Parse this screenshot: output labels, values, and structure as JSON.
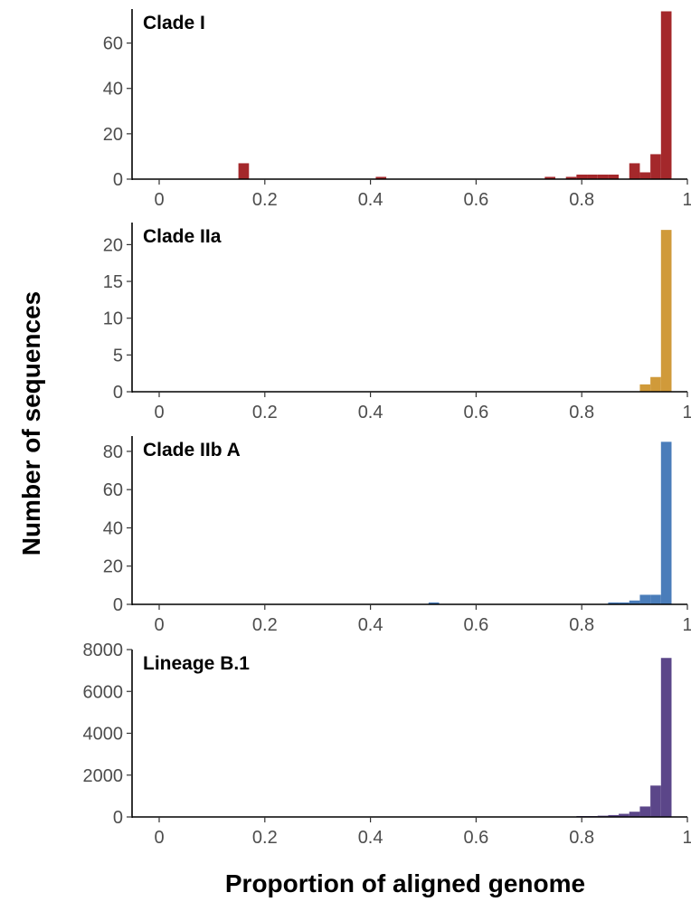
{
  "figure": {
    "xlabel": "Proportion of aligned genome",
    "ylabel": "Number of sequences"
  },
  "chart_data": [
    {
      "type": "bar",
      "title": "Clade I",
      "color": "#A4282B",
      "xlim": [
        0,
        1
      ],
      "ylim": [
        0,
        75
      ],
      "x_ticks": [
        "0",
        "0.2",
        "0.4",
        "0.6",
        "0.8",
        "1"
      ],
      "y_ticks": [
        "0",
        "20",
        "40",
        "60"
      ],
      "bins": [
        {
          "x0": 0.15,
          "x1": 0.17,
          "count": 7
        },
        {
          "x0": 0.41,
          "x1": 0.43,
          "count": 1
        },
        {
          "x0": 0.73,
          "x1": 0.75,
          "count": 1
        },
        {
          "x0": 0.77,
          "x1": 0.79,
          "count": 1
        },
        {
          "x0": 0.79,
          "x1": 0.81,
          "count": 2
        },
        {
          "x0": 0.81,
          "x1": 0.83,
          "count": 2
        },
        {
          "x0": 0.83,
          "x1": 0.85,
          "count": 2
        },
        {
          "x0": 0.85,
          "x1": 0.87,
          "count": 2
        },
        {
          "x0": 0.89,
          "x1": 0.91,
          "count": 7
        },
        {
          "x0": 0.91,
          "x1": 0.93,
          "count": 3
        },
        {
          "x0": 0.93,
          "x1": 0.95,
          "count": 11
        },
        {
          "x0": 0.95,
          "x1": 0.97,
          "count": 74
        }
      ]
    },
    {
      "type": "bar",
      "title": "Clade IIa",
      "color": "#D09A3A",
      "xlim": [
        0,
        1
      ],
      "ylim": [
        0,
        23
      ],
      "x_ticks": [
        "0",
        "0.2",
        "0.4",
        "0.6",
        "0.8",
        "1"
      ],
      "y_ticks": [
        "0",
        "5",
        "10",
        "15",
        "20"
      ],
      "bins": [
        {
          "x0": 0.91,
          "x1": 0.93,
          "count": 1
        },
        {
          "x0": 0.93,
          "x1": 0.95,
          "count": 2
        },
        {
          "x0": 0.95,
          "x1": 0.97,
          "count": 22
        }
      ]
    },
    {
      "type": "bar",
      "title": "Clade IIb A",
      "color": "#4A7DBA",
      "xlim": [
        0,
        1
      ],
      "ylim": [
        0,
        88
      ],
      "x_ticks": [
        "0",
        "0.2",
        "0.4",
        "0.6",
        "0.8",
        "1"
      ],
      "y_ticks": [
        "0",
        "20",
        "40",
        "60",
        "80"
      ],
      "bins": [
        {
          "x0": 0.51,
          "x1": 0.53,
          "count": 1
        },
        {
          "x0": 0.85,
          "x1": 0.87,
          "count": 1
        },
        {
          "x0": 0.87,
          "x1": 0.89,
          "count": 1
        },
        {
          "x0": 0.89,
          "x1": 0.91,
          "count": 2
        },
        {
          "x0": 0.91,
          "x1": 0.93,
          "count": 5
        },
        {
          "x0": 0.93,
          "x1": 0.95,
          "count": 5
        },
        {
          "x0": 0.95,
          "x1": 0.97,
          "count": 85
        }
      ]
    },
    {
      "type": "bar",
      "title": "Lineage B.1",
      "color": "#5B4689",
      "xlim": [
        0,
        1
      ],
      "ylim": [
        0,
        8000
      ],
      "x_ticks": [
        "0",
        "0.2",
        "0.4",
        "0.6",
        "0.8",
        "1"
      ],
      "y_ticks": [
        "0",
        "2000",
        "4000",
        "6000",
        "8000"
      ],
      "bins": [
        {
          "x0": 0.79,
          "x1": 0.81,
          "count": 30
        },
        {
          "x0": 0.81,
          "x1": 0.83,
          "count": 40
        },
        {
          "x0": 0.83,
          "x1": 0.85,
          "count": 60
        },
        {
          "x0": 0.85,
          "x1": 0.87,
          "count": 90
        },
        {
          "x0": 0.87,
          "x1": 0.89,
          "count": 150
        },
        {
          "x0": 0.89,
          "x1": 0.91,
          "count": 250
        },
        {
          "x0": 0.91,
          "x1": 0.93,
          "count": 500
        },
        {
          "x0": 0.93,
          "x1": 0.95,
          "count": 1500
        },
        {
          "x0": 0.95,
          "x1": 0.97,
          "count": 7600
        }
      ]
    }
  ]
}
